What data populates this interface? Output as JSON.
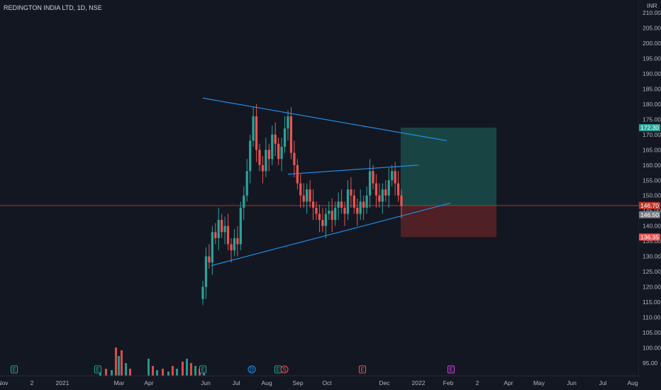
{
  "symbol": {
    "title": "REDINGTON INDIA LTD, 1D, NSE"
  },
  "currency": "INR",
  "colors": {
    "background": "#131722",
    "up": "#26a69a",
    "down": "#ef5350",
    "trendline": "#2196f3",
    "profit_zone": "#1a4d4a",
    "loss_zone": "#5b2226",
    "price_line": "#c0392b"
  },
  "price_badges": {
    "target": "172.30",
    "entry": "146.70",
    "last": "146.50",
    "stop": "136.35"
  },
  "events": [
    {
      "glyph": "E",
      "color": "#26a69a"
    },
    {
      "glyph": "E",
      "color": "#26a69a"
    },
    {
      "glyph": "E",
      "color": "#26a69a"
    },
    {
      "glyph": "D",
      "color": "#2196f3"
    },
    {
      "glyph": "E",
      "color": "#26a69a"
    },
    {
      "glyph": "S",
      "color": "#ef5350"
    },
    {
      "glyph": "E",
      "color": "#ef5350"
    },
    {
      "glyph": "E",
      "color": "#e040fb"
    }
  ],
  "chart_data": {
    "type": "candlestick",
    "y_ticks": [
      95,
      100,
      105,
      110,
      115,
      120,
      125,
      130,
      135,
      140,
      145,
      150,
      155,
      160,
      165,
      170,
      175,
      180,
      185,
      190,
      195,
      200,
      205,
      210
    ],
    "ylim": [
      92,
      212
    ],
    "x_ticks": [
      "Nov",
      "2",
      "2021",
      "Mar",
      "Apr",
      "Jun",
      "Jul",
      "Aug",
      "Sep",
      "Oct",
      "Dec",
      "2022",
      "Feb",
      "2",
      "Apr",
      "May",
      "Jun",
      "Jul",
      "Aug"
    ],
    "closes": [
      120,
      130,
      128,
      138,
      136,
      142,
      138,
      140,
      134,
      132,
      136,
      134,
      146,
      150,
      158,
      168,
      176,
      165,
      160,
      158,
      165,
      162,
      170,
      167,
      162,
      166,
      172,
      176,
      164,
      160,
      154,
      150,
      148,
      152,
      148,
      146,
      144,
      142,
      140,
      144,
      145,
      142,
      146,
      148,
      146,
      144,
      152,
      150,
      146,
      144,
      148,
      146,
      150,
      158,
      154,
      150,
      148,
      152,
      150,
      155,
      158,
      154,
      150,
      146.5
    ],
    "position": {
      "target": 172.3,
      "entry": 146.7,
      "stop": 136.35
    },
    "trendlines": [
      {
        "name": "upper-descending",
        "from": 182,
        "to": 168
      },
      {
        "name": "middle-ascending",
        "from": 157,
        "to": 160
      },
      {
        "name": "lower-ascending",
        "from": 127,
        "to": 147.5
      }
    ]
  }
}
